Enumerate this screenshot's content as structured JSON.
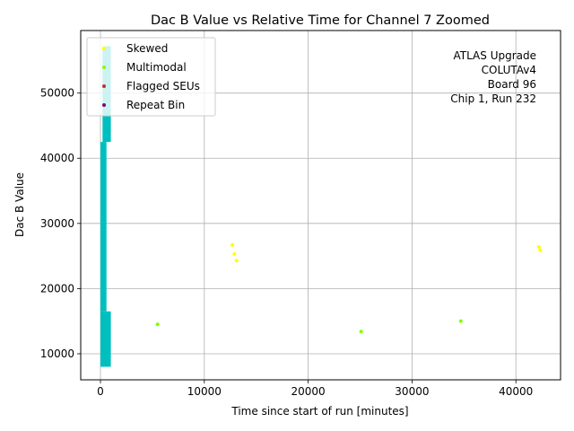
{
  "chart_data": {
    "type": "scatter",
    "title": "Dac B Value vs Relative Time for Channel 7 Zoomed",
    "xlabel": "Time since start of run [minutes]",
    "ylabel": "Dac B Value",
    "xlim": [
      -1900,
      44300
    ],
    "ylim": [
      6000,
      59600
    ],
    "xticks": [
      0,
      10000,
      20000,
      30000,
      40000
    ],
    "yticks": [
      10000,
      20000,
      30000,
      40000,
      50000
    ],
    "grid": true,
    "legend_position": "top-left",
    "annotation_lines": [
      "ATLAS Upgrade",
      "COLUTAv4",
      "Board 96",
      "Chip 1, Run 232"
    ],
    "main_band": {
      "color": "#00bfbf",
      "segments": [
        {
          "x": [
            0,
            1000
          ],
          "y": [
            8000,
            16500
          ]
        },
        {
          "x": [
            0,
            580
          ],
          "y": [
            16500,
            42500
          ]
        },
        {
          "x": [
            200,
            1000
          ],
          "y": [
            42500,
            57200
          ]
        }
      ]
    },
    "series": [
      {
        "name": "Skewed",
        "color": "#ffff00",
        "points": [
          [
            300,
            57000
          ],
          [
            12700,
            26700
          ],
          [
            12900,
            25300
          ],
          [
            13100,
            24300
          ],
          [
            42200,
            26400
          ],
          [
            42350,
            25900
          ]
        ]
      },
      {
        "name": "Multimodal",
        "color": "#80ff00",
        "points": [
          [
            5500,
            14500
          ],
          [
            25100,
            13400
          ],
          [
            34700,
            15000
          ]
        ]
      },
      {
        "name": "Flagged SEUs",
        "color": "#c03030",
        "points": []
      },
      {
        "name": "Repeat Bin",
        "color": "#800080",
        "points": []
      }
    ]
  }
}
